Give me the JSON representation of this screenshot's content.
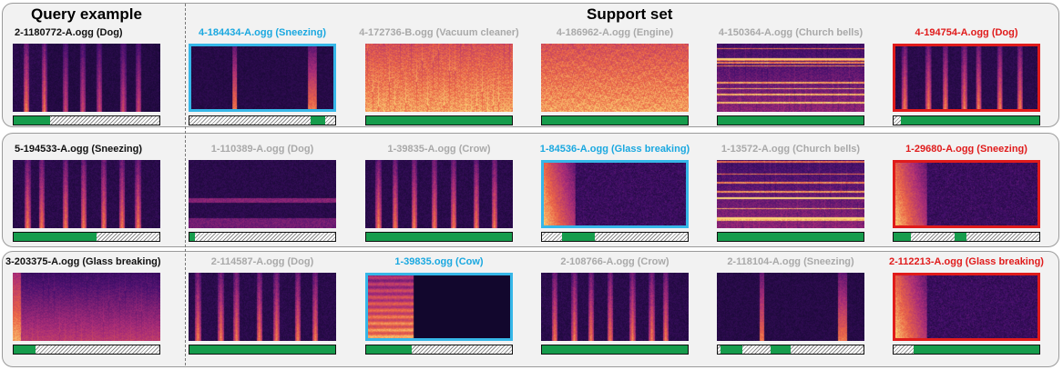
{
  "headers": {
    "query": "Query example",
    "support": "Support set"
  },
  "colors": {
    "green": "#169c4c",
    "highlight_blue": "#36b7e8",
    "highlight_red": "#e01b1b",
    "neutral_gray": "#a9a9a9"
  },
  "rows": [
    {
      "query": {
        "label": "2-1180772-A.ogg (Dog)",
        "bar": [
          [
            0,
            0.25
          ]
        ]
      },
      "support": [
        {
          "label": "4-184434-A.ogg (Sneezing)",
          "color": "blue",
          "bar": [
            [
              0.83,
              0.93
            ]
          ],
          "spectrogram": "sparse-dark"
        },
        {
          "label": "4-172736-B.ogg (Vacuum cleaner)",
          "color": "gray",
          "bar": [
            [
              0,
              1
            ]
          ],
          "spectrogram": "noise-bright"
        },
        {
          "label": "4-186962-A.ogg (Engine)",
          "color": "gray",
          "bar": [
            [
              0,
              1
            ]
          ],
          "spectrogram": "noise-bright"
        },
        {
          "label": "4-150364-A.ogg (Church bells)",
          "color": "gray",
          "bar": [
            [
              0,
              1
            ]
          ],
          "spectrogram": "harmonic"
        },
        {
          "label": "4-194754-A.ogg (Dog)",
          "color": "red",
          "bar": [
            [
              0.05,
              1
            ]
          ],
          "spectrogram": "pulses"
        }
      ]
    },
    {
      "query": {
        "label": "5-194533-A.ogg (Sneezing)",
        "bar": [
          [
            0,
            0.57
          ]
        ]
      },
      "support": [
        {
          "label": "1-110389-A.ogg (Dog)",
          "color": "gray",
          "bar": [
            [
              0,
              0.04
            ]
          ],
          "spectrogram": "low-band"
        },
        {
          "label": "1-39835-A.ogg (Crow)",
          "color": "gray",
          "bar": [
            [
              0,
              1
            ]
          ],
          "spectrogram": "pulses"
        },
        {
          "label": "1-84536-A.ogg (Glass breaking)",
          "color": "blue",
          "bar": [
            [
              0.14,
              0.36
            ]
          ],
          "spectrogram": "burst-left"
        },
        {
          "label": "1-13572-A.ogg (Church bells)",
          "color": "gray",
          "bar": [
            [
              0,
              1
            ]
          ],
          "spectrogram": "harmonic"
        },
        {
          "label": "1-29680-A.ogg (Sneezing)",
          "color": "red",
          "bar": [
            [
              0,
              0.12
            ],
            [
              0.42,
              0.5
            ]
          ],
          "spectrogram": "burst-left"
        }
      ]
    },
    {
      "query": {
        "label": "3-203375-A.ogg (Glass breaking)",
        "bar": [
          [
            0,
            0.15
          ]
        ]
      },
      "support": [
        {
          "label": "2-114587-A.ogg (Dog)",
          "color": "gray",
          "bar": [
            [
              0,
              1
            ]
          ],
          "spectrogram": "pulses"
        },
        {
          "label": "1-39835.ogg (Cow)",
          "color": "blue",
          "bar": [
            [
              0,
              0.31
            ]
          ],
          "spectrogram": "half-bright"
        },
        {
          "label": "2-108766-A.ogg (Crow)",
          "color": "gray",
          "bar": [
            [
              0,
              1
            ]
          ],
          "spectrogram": "pulses"
        },
        {
          "label": "2-118104-A.ogg (Sneezing)",
          "color": "gray",
          "bar": [
            [
              0.02,
              0.17
            ],
            [
              0.36,
              0.5
            ]
          ],
          "spectrogram": "sparse-dark"
        },
        {
          "label": "2-112213-A.ogg (Glass breaking)",
          "color": "red",
          "bar": [
            [
              0.14,
              1
            ]
          ],
          "spectrogram": "burst-left"
        }
      ]
    }
  ]
}
